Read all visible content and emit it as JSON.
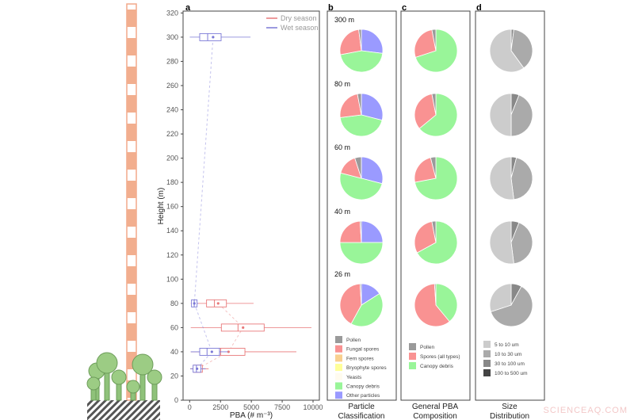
{
  "watermark": "SCIENCEAQ.COM",
  "chart_data": [
    {
      "panel": "a",
      "type": "boxplot",
      "orientation": "horizontal",
      "xlabel": "PBA (# m⁻³)",
      "ylabel": "Height (m)",
      "xlim": [
        0,
        10000
      ],
      "ylim": [
        0,
        320
      ],
      "xticks": [
        0,
        2500,
        5000,
        7500,
        10000
      ],
      "yticks": [
        0,
        20,
        40,
        60,
        80,
        100,
        120,
        140,
        160,
        180,
        200,
        220,
        240,
        260,
        280,
        300,
        320
      ],
      "legend": {
        "placement": "top-right",
        "entries": [
          "Dry season",
          "Wet season"
        ]
      },
      "colors": {
        "Dry season": "#e8797a",
        "Wet season": "#7b78d6"
      },
      "series": [
        {
          "name": "Dry season",
          "boxes": [
            {
              "height": 26,
              "whisker_low": 50,
              "q1": 320,
              "median": 600,
              "q3": 1030,
              "whisker_high": 1540,
              "mean": 640
            },
            {
              "height": 40,
              "whisker_low": 90,
              "q1": 2400,
              "median": 2510,
              "q3": 4480,
              "whisker_high": 8650,
              "mean": 3150
            },
            {
              "height": 60,
              "whisker_low": 90,
              "q1": 2570,
              "median": 3920,
              "q3": 6040,
              "whisker_high": 9870,
              "mean": 4330
            },
            {
              "height": 80,
              "whisker_low": 90,
              "q1": 1370,
              "median": 2010,
              "q3": 2980,
              "whisker_high": 5180,
              "mean": 2310
            }
          ]
        },
        {
          "name": "Wet season",
          "boxes": [
            {
              "height": 26,
              "whisker_low": 50,
              "q1": 280,
              "median": 550,
              "q3": 900,
              "whisker_high": 1300,
              "mean": 600
            },
            {
              "height": 40,
              "whisker_low": 90,
              "q1": 815,
              "median": 1410,
              "q3": 2420,
              "whisker_high": 3100,
              "mean": 1800
            },
            {
              "height": 80,
              "whisker_low": 120,
              "q1": 150,
              "median": 370,
              "q3": 600,
              "whisker_high": 700,
              "mean": 380
            },
            {
              "height": 300,
              "whisker_low": 10,
              "q1": 815,
              "median": 1460,
              "q3": 2550,
              "whisker_high": 4930,
              "mean": 1900
            }
          ]
        }
      ]
    },
    {
      "panel": "b",
      "type": "pie",
      "title": "Particle Classification",
      "heights": [
        "300 m",
        "80 m",
        "60 m",
        "40 m",
        "26 m"
      ],
      "slice_order": [
        "Other particles",
        "Canopy debris",
        "Fungal spores",
        "Pollen"
      ],
      "legend": [
        "Pollen",
        "Fungal spores",
        "Fern spores",
        "Bryophyte spores",
        "Yeasts",
        "Canopy debris",
        "Other particles"
      ],
      "colors": {
        "Pollen": "#9a9a9a",
        "Fungal spores": "#f99292",
        "Fern spores": "#f9d08f",
        "Bryophyte spores": "#ffff99",
        "Yeasts": "#fffbee",
        "Canopy debris": "#99f599",
        "Other particles": "#9a9aff"
      },
      "values_percent": [
        [
          27,
          45,
          26,
          2
        ],
        [
          29,
          44,
          24,
          3
        ],
        [
          29,
          50,
          16,
          5
        ],
        [
          25,
          50,
          24,
          1
        ],
        [
          16,
          42,
          41,
          1
        ]
      ]
    },
    {
      "panel": "c",
      "type": "pie",
      "title": "General PBA Composition",
      "slice_order": [
        "Canopy debris",
        "Spores (all types)",
        "Pollen"
      ],
      "legend": [
        "Pollen",
        "Spores (all types)",
        "Canopy debris"
      ],
      "colors": {
        "Pollen": "#9a9a9a",
        "Spores (all types)": "#f99292",
        "Canopy debris": "#99f599"
      },
      "values_percent": [
        [
          70,
          27,
          3
        ],
        [
          64,
          33,
          3
        ],
        [
          72,
          24,
          4
        ],
        [
          67,
          30,
          3
        ],
        [
          39,
          60,
          1
        ]
      ]
    },
    {
      "panel": "d",
      "type": "pie",
      "title": "Size Distribution",
      "slice_order": [
        "30 to 100 um",
        "10 to 30 um",
        "5 to 10 um"
      ],
      "legend": [
        "5 to 10 um",
        "10 to 30 um",
        "30 to 100 um",
        "100 to 500 um"
      ],
      "colors": {
        "5 to 10 um": "#cccccc",
        "10 to 30 um": "#aaaaaa",
        "30 to 100 um": "#888888",
        "100 to 500 um": "#444444"
      },
      "values_percent": [
        [
          2,
          38,
          60
        ],
        [
          6,
          44,
          50
        ],
        [
          4,
          44,
          52
        ],
        [
          6,
          42,
          52
        ],
        [
          8,
          62,
          30
        ]
      ]
    }
  ]
}
